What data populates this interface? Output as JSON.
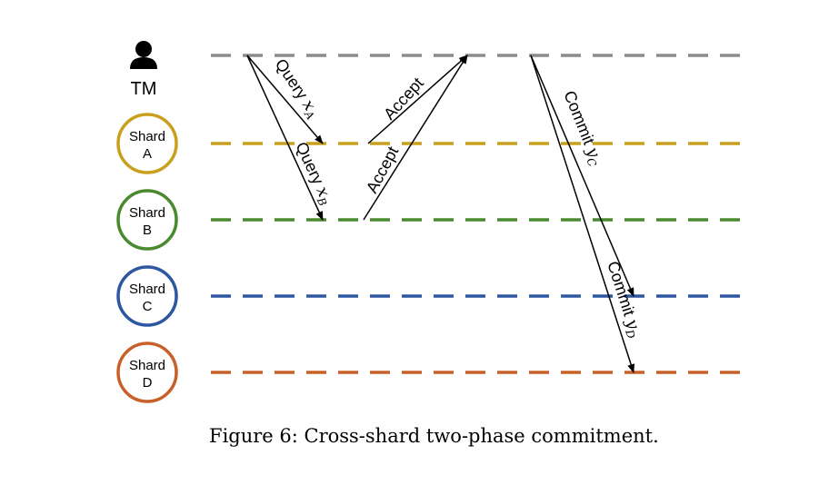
{
  "participants": [
    {
      "id": "tm",
      "label": "TM",
      "kind": "person",
      "color": "#8c8c8c"
    },
    {
      "id": "a",
      "label_line1": "Shard",
      "label_line2": "A",
      "kind": "shard",
      "color": "#c8a01e"
    },
    {
      "id": "b",
      "label_line1": "Shard",
      "label_line2": "B",
      "kind": "shard",
      "color": "#4a8a2e"
    },
    {
      "id": "c",
      "label_line1": "Shard",
      "label_line2": "C",
      "kind": "shard",
      "color": "#2d57a0"
    },
    {
      "id": "d",
      "label_line1": "Shard",
      "label_line2": "D",
      "kind": "shard",
      "color": "#c8602a"
    }
  ],
  "messages": [
    {
      "id": "query-a",
      "from": "tm",
      "to": "a",
      "text": "Query ",
      "sub": "x",
      "subscript": "A"
    },
    {
      "id": "query-b",
      "from": "tm",
      "to": "b",
      "text": "Query ",
      "sub": "x",
      "subscript": "B"
    },
    {
      "id": "accept-a",
      "from": "a",
      "to": "tm",
      "text": "Accept"
    },
    {
      "id": "accept-b",
      "from": "b",
      "to": "tm",
      "text": "Accept"
    },
    {
      "id": "commit-c",
      "from": "tm",
      "to": "c",
      "text": "Commit ",
      "sub": "y",
      "subscript": "C"
    },
    {
      "id": "commit-d",
      "from": "tm",
      "to": "d",
      "text": "Commit ",
      "sub": "y",
      "subscript": "D"
    }
  ],
  "icons": {
    "tm": "person-icon"
  },
  "caption": "Figure 6: Cross-shard two-phase commitment."
}
